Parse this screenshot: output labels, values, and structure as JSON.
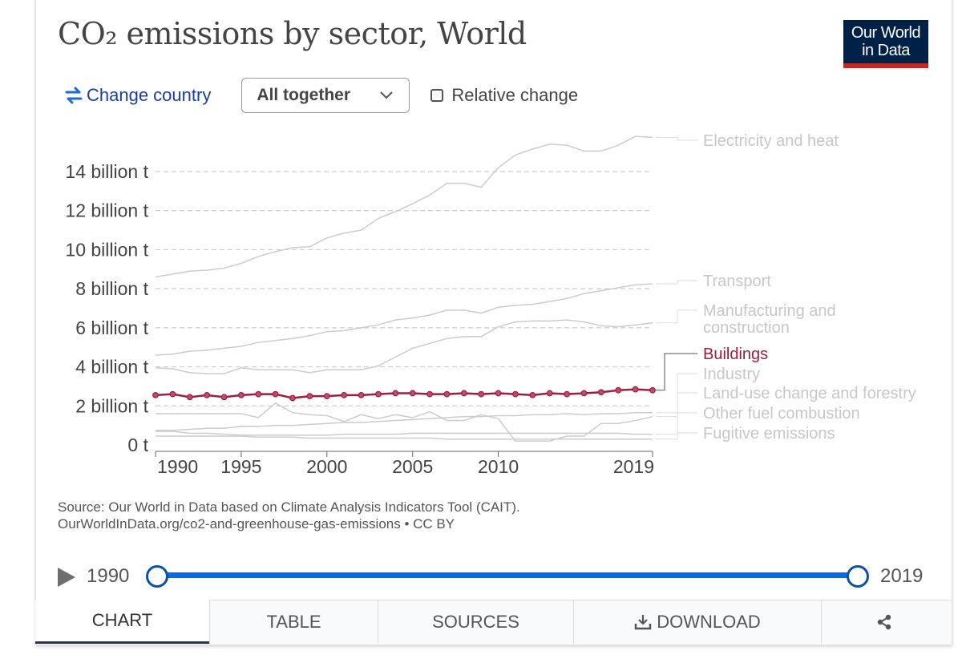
{
  "header": {
    "title": "CO₂ emissions by sector, World",
    "logo_line1": "Our World",
    "logo_line2": "in Data"
  },
  "controls": {
    "change_country_label": "Change country",
    "stacking_select_value": "All together",
    "relative_change_label": "Relative change",
    "relative_change_checked": false
  },
  "colors": {
    "highlight": "#9a1f3f",
    "muted": "#cccccc",
    "muted_label": "#c7c7c7",
    "grid": "#cccccc",
    "accent_blue": "#0f68d8",
    "logo_bg": "#002147",
    "logo_bar": "#ce261e"
  },
  "chart_data": {
    "type": "line",
    "title": "CO₂ emissions by sector, World",
    "xlabel": "",
    "ylabel": "",
    "unit": "t",
    "x": [
      1990,
      1991,
      1992,
      1993,
      1994,
      1995,
      1996,
      1997,
      1998,
      1999,
      2000,
      2001,
      2002,
      2003,
      2004,
      2005,
      2006,
      2007,
      2008,
      2009,
      2010,
      2011,
      2012,
      2013,
      2014,
      2015,
      2016,
      2017,
      2018,
      2019
    ],
    "x_ticks": [
      1990,
      1995,
      2000,
      2005,
      2010,
      2019
    ],
    "x_tick_labels": [
      "1990",
      "1995",
      "2000",
      "2005",
      "2010",
      "2019"
    ],
    "xlim": [
      1990,
      2019
    ],
    "ylim": [
      0,
      15.6
    ],
    "y_ticks": [
      0,
      2,
      4,
      6,
      8,
      10,
      12,
      14
    ],
    "y_tick_labels": [
      "0 t",
      "2 billion t",
      "4 billion t",
      "6 billion t",
      "8 billion t",
      "10 billion t",
      "12 billion t",
      "14 billion t"
    ],
    "y_scale_note": "values in billion t",
    "grid": true,
    "legend_placement": "right (inline labels at line ends)",
    "highlighted_series": "Buildings",
    "series": [
      {
        "name": "Electricity and heat",
        "values": [
          8.6,
          8.75,
          8.9,
          8.95,
          9.05,
          9.3,
          9.65,
          9.9,
          10.1,
          10.15,
          10.6,
          10.85,
          11.0,
          11.6,
          11.95,
          12.35,
          12.8,
          13.4,
          13.4,
          13.2,
          14.2,
          14.85,
          15.15,
          15.4,
          15.35,
          15.05,
          15.05,
          15.35,
          15.8,
          15.75
        ]
      },
      {
        "name": "Transport",
        "values": [
          4.6,
          4.65,
          4.8,
          4.85,
          4.95,
          5.05,
          5.25,
          5.35,
          5.45,
          5.6,
          5.8,
          5.85,
          6.0,
          6.15,
          6.4,
          6.5,
          6.65,
          6.9,
          6.9,
          6.75,
          7.05,
          7.15,
          7.2,
          7.35,
          7.5,
          7.75,
          7.9,
          8.05,
          8.2,
          8.25
        ]
      },
      {
        "name": "Manufacturing and construction",
        "values": [
          3.95,
          3.9,
          3.7,
          3.65,
          3.65,
          3.95,
          3.85,
          3.85,
          3.85,
          3.7,
          3.85,
          3.85,
          3.85,
          4.05,
          4.5,
          4.95,
          5.2,
          5.45,
          5.55,
          5.55,
          6.05,
          6.3,
          6.35,
          6.35,
          6.4,
          6.3,
          6.1,
          6.05,
          6.15,
          6.25
        ]
      },
      {
        "name": "Buildings",
        "values": [
          2.55,
          2.6,
          2.45,
          2.55,
          2.45,
          2.55,
          2.6,
          2.6,
          2.4,
          2.5,
          2.5,
          2.55,
          2.55,
          2.6,
          2.65,
          2.65,
          2.6,
          2.6,
          2.65,
          2.6,
          2.65,
          2.6,
          2.55,
          2.65,
          2.6,
          2.65,
          2.7,
          2.8,
          2.85,
          2.8
        ]
      },
      {
        "name": "Industry",
        "values": [
          0.75,
          0.75,
          0.8,
          0.85,
          0.85,
          0.95,
          0.95,
          1.0,
          1.0,
          1.05,
          1.1,
          1.15,
          1.15,
          1.2,
          1.25,
          1.3,
          1.35,
          1.4,
          1.45,
          1.45,
          1.5,
          1.5,
          1.55,
          1.55,
          1.6,
          1.55,
          1.6,
          1.6,
          1.65,
          1.65
        ]
      },
      {
        "name": "Land-use change and forestry",
        "values": [
          1.6,
          1.6,
          1.6,
          1.6,
          1.6,
          1.6,
          1.4,
          2.15,
          1.65,
          1.55,
          1.5,
          1.2,
          1.55,
          1.35,
          1.55,
          1.4,
          1.7,
          1.25,
          1.25,
          1.55,
          1.35,
          0.2,
          0.2,
          0.2,
          0.45,
          0.45,
          1.1,
          1.1,
          1.25,
          1.45
        ]
      },
      {
        "name": "Other fuel combustion",
        "values": [
          0.7,
          0.7,
          0.6,
          0.6,
          0.55,
          0.5,
          0.5,
          0.5,
          0.5,
          0.5,
          0.5,
          0.55,
          0.55,
          0.55,
          0.55,
          0.6,
          0.6,
          0.6,
          0.6,
          0.6,
          0.6,
          0.6,
          0.6,
          0.6,
          0.6,
          0.6,
          0.6,
          0.6,
          0.55,
          0.55
        ]
      },
      {
        "name": "Fugitive emissions",
        "values": [
          0.45,
          0.45,
          0.45,
          0.45,
          0.45,
          0.45,
          0.4,
          0.4,
          0.4,
          0.35,
          0.35,
          0.35,
          0.35,
          0.35,
          0.35,
          0.35,
          0.35,
          0.3,
          0.3,
          0.3,
          0.3,
          0.3,
          0.3,
          0.3,
          0.3,
          0.3,
          0.3,
          0.3,
          0.3,
          0.3
        ]
      }
    ]
  },
  "source": {
    "line1": "Source: Our World in Data based on Climate Analysis Indicators Tool (CAIT).",
    "line2": "OurWorldInData.org/co2-and-greenhouse-gas-emissions • CC BY"
  },
  "timeline": {
    "start_label": "1990",
    "end_label": "2019",
    "start_year": 1990,
    "end_year": 2019,
    "min_year": 1990,
    "max_year": 2019
  },
  "tabs": [
    {
      "label": "CHART",
      "active": true
    },
    {
      "label": "TABLE",
      "active": false
    },
    {
      "label": "SOURCES",
      "active": false
    },
    {
      "label": "DOWNLOAD",
      "active": false
    },
    {
      "label": "",
      "icon": "share-icon",
      "active": false
    }
  ]
}
